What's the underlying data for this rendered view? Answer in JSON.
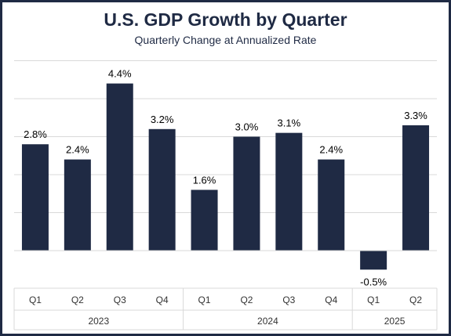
{
  "chart_data": {
    "type": "bar",
    "title": "U.S. GDP Growth by Quarter",
    "subtitle": "Quarterly Change at Annualized Rate",
    "categories": [
      "Q1",
      "Q2",
      "Q3",
      "Q4",
      "Q1",
      "Q2",
      "Q3",
      "Q4",
      "Q1",
      "Q2"
    ],
    "groups": [
      {
        "label": "2023",
        "count": 4
      },
      {
        "label": "2024",
        "count": 4
      },
      {
        "label": "2025",
        "count": 2
      }
    ],
    "values": [
      2.8,
      2.4,
      4.4,
      3.2,
      1.6,
      3.0,
      3.1,
      2.4,
      -0.5,
      3.3
    ],
    "data_labels": [
      "2.8%",
      "2.4%",
      "4.4%",
      "3.2%",
      "1.6%",
      "3.0%",
      "3.1%",
      "2.4%",
      "-0.5%",
      "3.3%"
    ],
    "xlabel": "",
    "ylabel": "",
    "ylim": [
      -1,
      5
    ],
    "grid": true,
    "bar_color": "#1f2a44",
    "grid_color": "#d9d9d9",
    "frame_color": "#1f2a44"
  }
}
